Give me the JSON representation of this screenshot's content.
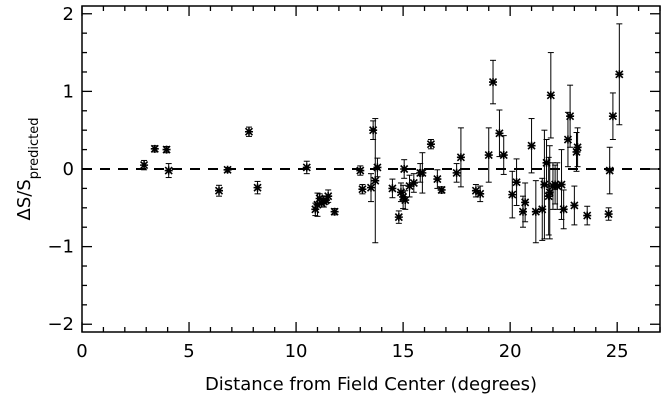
{
  "chart_data": {
    "type": "scatter",
    "title": "",
    "xlabel": "Distance from Field Center (degrees)",
    "ylabel_main": "ΔS/S",
    "ylabel_sub": "predicted",
    "xlim": [
      0,
      27
    ],
    "ylim": [
      -2.1,
      2.1
    ],
    "x_ticks": [
      0,
      5,
      10,
      15,
      20,
      25
    ],
    "x_tick_labels": [
      "0",
      "5",
      "10",
      "15",
      "20",
      "25"
    ],
    "y_ticks": [
      -2,
      -1,
      0,
      1,
      2
    ],
    "y_tick_labels": [
      "−2",
      "−1",
      "0",
      "1",
      "2"
    ],
    "x_minor_step": 1,
    "y_minor_step": 0.25,
    "reference_line": {
      "y": 0,
      "style": "dashed"
    },
    "grid": false,
    "marker": "asterisk",
    "series": [
      {
        "points": [
          {
            "x": 2.9,
            "y": 0.05,
            "err": 0.06
          },
          {
            "x": 3.4,
            "y": 0.26,
            "err": 0.04
          },
          {
            "x": 3.95,
            "y": 0.25,
            "err": 0.04
          },
          {
            "x": 4.05,
            "y": -0.02,
            "err": 0.09
          },
          {
            "x": 6.4,
            "y": -0.28,
            "err": 0.07
          },
          {
            "x": 6.8,
            "y": -0.01,
            "err": 0.03
          },
          {
            "x": 7.8,
            "y": 0.48,
            "err": 0.06
          },
          {
            "x": 8.2,
            "y": -0.24,
            "err": 0.08
          },
          {
            "x": 10.5,
            "y": 0.02,
            "err": 0.08
          },
          {
            "x": 10.9,
            "y": -0.52,
            "err": 0.08
          },
          {
            "x": 11.0,
            "y": -0.46,
            "err": 0.15
          },
          {
            "x": 11.1,
            "y": -0.38,
            "err": 0.06
          },
          {
            "x": 11.2,
            "y": -0.44,
            "err": 0.05
          },
          {
            "x": 11.3,
            "y": -0.42,
            "err": 0.07
          },
          {
            "x": 11.4,
            "y": -0.4,
            "err": 0.05
          },
          {
            "x": 11.5,
            "y": -0.35,
            "err": 0.08
          },
          {
            "x": 11.8,
            "y": -0.55,
            "err": 0.04
          },
          {
            "x": 13.0,
            "y": -0.02,
            "err": 0.06
          },
          {
            "x": 13.1,
            "y": -0.26,
            "err": 0.06
          },
          {
            "x": 13.5,
            "y": -0.24,
            "err": 0.18
          },
          {
            "x": 13.6,
            "y": 0.5,
            "err": 0.12
          },
          {
            "x": 13.7,
            "y": -0.15,
            "err": 0.8
          },
          {
            "x": 13.8,
            "y": 0.02,
            "err": 0.12
          },
          {
            "x": 14.5,
            "y": -0.25,
            "err": 0.12
          },
          {
            "x": 14.8,
            "y": -0.62,
            "err": 0.08
          },
          {
            "x": 14.9,
            "y": -0.3,
            "err": 0.12
          },
          {
            "x": 15.0,
            "y": -0.36,
            "err": 0.15
          },
          {
            "x": 15.05,
            "y": 0.0,
            "err": 0.12
          },
          {
            "x": 15.1,
            "y": -0.4,
            "err": 0.12
          },
          {
            "x": 15.3,
            "y": -0.22,
            "err": 0.14
          },
          {
            "x": 15.5,
            "y": -0.18,
            "err": 0.12
          },
          {
            "x": 15.8,
            "y": -0.05,
            "err": 0.12
          },
          {
            "x": 15.9,
            "y": -0.05,
            "err": 0.26
          },
          {
            "x": 16.3,
            "y": 0.32,
            "err": 0.06
          },
          {
            "x": 16.6,
            "y": -0.13,
            "err": 0.12
          },
          {
            "x": 16.8,
            "y": -0.27,
            "err": 0.04
          },
          {
            "x": 17.5,
            "y": -0.05,
            "err": 0.12
          },
          {
            "x": 17.7,
            "y": 0.15,
            "err": 0.38
          },
          {
            "x": 18.4,
            "y": -0.28,
            "err": 0.08
          },
          {
            "x": 18.6,
            "y": -0.32,
            "err": 0.1
          },
          {
            "x": 19.0,
            "y": 0.18,
            "err": 0.35
          },
          {
            "x": 19.2,
            "y": 1.12,
            "err": 0.28
          },
          {
            "x": 19.5,
            "y": 0.46,
            "err": 0.3
          },
          {
            "x": 19.7,
            "y": 0.18,
            "err": 0.25
          },
          {
            "x": 20.1,
            "y": -0.33,
            "err": 0.3
          },
          {
            "x": 20.3,
            "y": -0.17,
            "err": 0.3
          },
          {
            "x": 20.6,
            "y": -0.55,
            "err": 0.2
          },
          {
            "x": 20.7,
            "y": -0.43,
            "err": 0.25
          },
          {
            "x": 21.0,
            "y": 0.3,
            "err": 0.35
          },
          {
            "x": 21.2,
            "y": -0.55,
            "err": 0.4
          },
          {
            "x": 21.5,
            "y": -0.52,
            "err": 0.4
          },
          {
            "x": 21.6,
            "y": -0.2,
            "err": 0.7
          },
          {
            "x": 21.7,
            "y": 0.08,
            "err": 0.3
          },
          {
            "x": 21.8,
            "y": -0.35,
            "err": 0.5
          },
          {
            "x": 21.85,
            "y": -0.3,
            "err": 0.6
          },
          {
            "x": 21.9,
            "y": 0.95,
            "err": 0.55
          },
          {
            "x": 22.0,
            "y": -0.22,
            "err": 0.3
          },
          {
            "x": 22.1,
            "y": -0.2,
            "err": 0.25
          },
          {
            "x": 22.2,
            "y": -0.22,
            "err": 0.3
          },
          {
            "x": 22.4,
            "y": -0.2,
            "err": 0.45
          },
          {
            "x": 22.5,
            "y": -0.52,
            "err": 0.25
          },
          {
            "x": 22.7,
            "y": 0.38,
            "err": 0.35
          },
          {
            "x": 22.8,
            "y": 0.68,
            "err": 0.4
          },
          {
            "x": 23.0,
            "y": -0.47,
            "err": 0.25
          },
          {
            "x": 23.1,
            "y": 0.22,
            "err": 0.25
          },
          {
            "x": 23.15,
            "y": 0.28,
            "err": 0.25
          },
          {
            "x": 23.6,
            "y": -0.6,
            "err": 0.12
          },
          {
            "x": 24.6,
            "y": -0.58,
            "err": 0.08
          },
          {
            "x": 24.65,
            "y": -0.02,
            "err": 0.3
          },
          {
            "x": 24.8,
            "y": 0.68,
            "err": 0.3
          },
          {
            "x": 25.1,
            "y": 1.22,
            "err": 0.65
          }
        ]
      }
    ]
  }
}
